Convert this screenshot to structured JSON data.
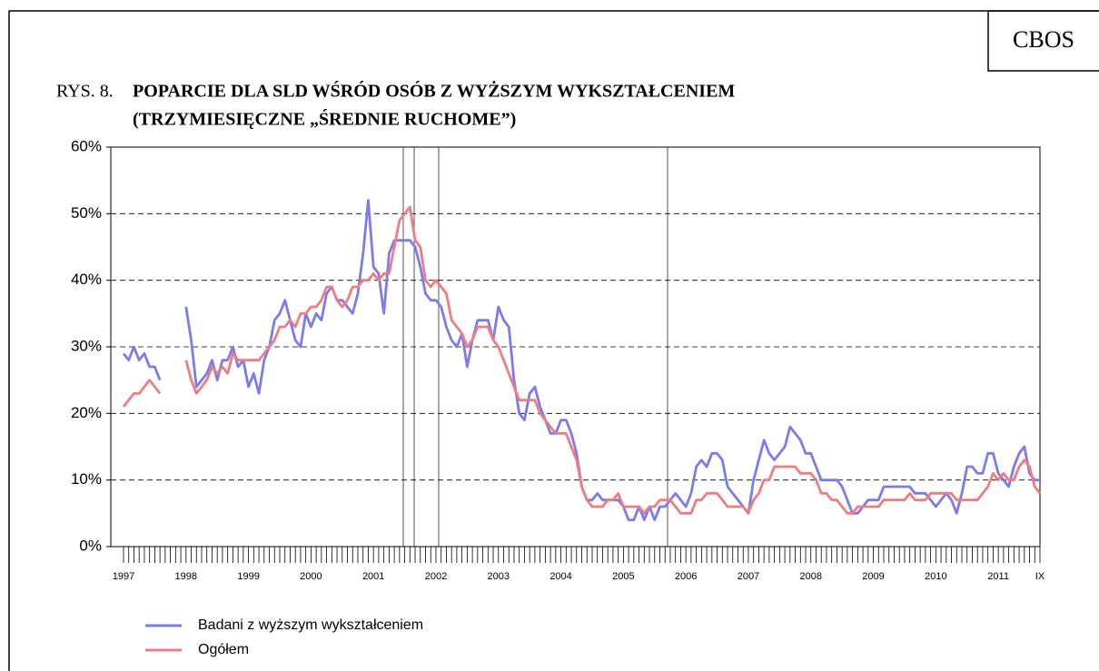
{
  "source": "CBOS",
  "chart_data": {
    "type": "line",
    "figure_label": "RYS. 8.",
    "title_lines": [
      "POPARCIE DLA SLD WŚRÓD OSÓB Z WYŻSZYM WYKSZTAŁCENIEM",
      "(TRZYMIESIĘCZNE „ŚREDNIE RUCHOME”)"
    ],
    "categories": [
      "1997",
      null,
      null,
      null,
      null,
      null,
      null,
      null,
      null,
      null,
      null,
      null,
      "1998",
      null,
      null,
      null,
      null,
      null,
      null,
      null,
      null,
      null,
      null,
      null,
      "1999",
      null,
      null,
      null,
      null,
      null,
      null,
      null,
      null,
      null,
      null,
      null,
      "2000",
      null,
      null,
      null,
      null,
      null,
      null,
      null,
      null,
      null,
      null,
      null,
      "2001",
      null,
      null,
      null,
      null,
      null,
      null,
      null,
      null,
      null,
      null,
      null,
      "2002",
      null,
      null,
      null,
      null,
      null,
      null,
      null,
      null,
      null,
      null,
      null,
      "2003",
      null,
      null,
      null,
      null,
      null,
      null,
      null,
      null,
      null,
      null,
      null,
      "2004",
      null,
      null,
      null,
      null,
      null,
      null,
      null,
      null,
      null,
      null,
      null,
      "2005",
      null,
      null,
      null,
      null,
      null,
      null,
      null,
      null,
      null,
      null,
      null,
      "2006",
      null,
      null,
      null,
      null,
      null,
      null,
      null,
      null,
      null,
      null,
      null,
      "2007",
      null,
      null,
      null,
      null,
      null,
      null,
      null,
      null,
      null,
      null,
      null,
      "2008",
      null,
      null,
      null,
      null,
      null,
      null,
      null,
      null,
      null,
      null,
      null,
      "2009",
      null,
      null,
      null,
      null,
      null,
      null,
      null,
      null,
      null,
      null,
      null,
      "2010",
      null,
      null,
      null,
      null,
      null,
      null,
      null,
      null,
      null,
      null,
      null,
      "2011",
      null,
      null,
      null,
      null,
      null,
      null,
      null,
      "IX"
    ],
    "series": [
      {
        "name": "Badani z wyższym wykształceniem",
        "color": "#7b7bef",
        "values": [
          29,
          28,
          30,
          28,
          29,
          27,
          27,
          25,
          null,
          null,
          null,
          null,
          36,
          31,
          24,
          25,
          26,
          28,
          25,
          28,
          28,
          30,
          27,
          28,
          24,
          26,
          23,
          28,
          30,
          34,
          35,
          37,
          34,
          31,
          30,
          35,
          33,
          35,
          34,
          38,
          39,
          37,
          37,
          36,
          35,
          38,
          44,
          52,
          42,
          41,
          35,
          44,
          46,
          46,
          46,
          46,
          45,
          42,
          38,
          37,
          37,
          36,
          33,
          31,
          30,
          32,
          27,
          31,
          34,
          34,
          34,
          31,
          36,
          34,
          33,
          25,
          20,
          19,
          23,
          24,
          21,
          19,
          17,
          17,
          19,
          19,
          17,
          14,
          9,
          7,
          7,
          8,
          7,
          7,
          7,
          7,
          6,
          4,
          4,
          6,
          4,
          6,
          4,
          6,
          6,
          7,
          8,
          7,
          6,
          8,
          12,
          13,
          12,
          14,
          14,
          13,
          9,
          8,
          7,
          6,
          5,
          10,
          13,
          16,
          14,
          13,
          14,
          15,
          18,
          17,
          16,
          14,
          14,
          12,
          10,
          10,
          10,
          10,
          9,
          7,
          5,
          5,
          6,
          7,
          7,
          7,
          9,
          9,
          9,
          9,
          9,
          9,
          8,
          8,
          8,
          7,
          6,
          7,
          8,
          7,
          5,
          8,
          12,
          12,
          11,
          11,
          14,
          14,
          11,
          10,
          9,
          12,
          14,
          15,
          11,
          10,
          10
        ]
      },
      {
        "name": "Ogółem",
        "color": "#f07c80",
        "values": [
          21,
          22,
          23,
          23,
          24,
          25,
          24,
          23,
          null,
          null,
          null,
          null,
          28,
          25,
          23,
          24,
          25,
          27,
          26,
          27,
          26,
          29,
          28,
          28,
          28,
          28,
          28,
          29,
          30,
          31,
          33,
          33,
          34,
          33,
          35,
          35,
          36,
          36,
          37,
          39,
          39,
          37,
          36,
          37,
          39,
          39,
          40,
          40,
          41,
          40,
          41,
          41,
          45,
          49,
          50,
          51,
          46,
          45,
          40,
          39,
          40,
          39,
          38,
          34,
          33,
          32,
          30,
          31,
          33,
          33,
          33,
          31,
          30,
          28,
          26,
          24,
          22,
          22,
          22,
          22,
          20,
          19,
          18,
          17,
          17,
          17,
          15,
          13,
          9,
          7,
          6,
          6,
          6,
          7,
          7,
          8,
          6,
          6,
          6,
          6,
          5,
          6,
          6,
          7,
          7,
          7,
          6,
          5,
          5,
          5,
          7,
          7,
          8,
          8,
          8,
          7,
          6,
          6,
          6,
          6,
          5,
          7,
          8,
          10,
          10,
          12,
          12,
          12,
          12,
          12,
          11,
          11,
          11,
          10,
          8,
          8,
          7,
          7,
          6,
          5,
          5,
          6,
          6,
          6,
          6,
          6,
          7,
          7,
          7,
          7,
          7,
          8,
          7,
          7,
          7,
          8,
          8,
          8,
          8,
          8,
          7,
          7,
          7,
          7,
          7,
          8,
          9,
          11,
          10,
          11,
          10,
          10,
          12,
          13,
          12,
          9,
          8
        ]
      }
    ],
    "ylim": [
      0,
      60
    ],
    "yticks": [
      {
        "value": 0,
        "label": "0%"
      },
      {
        "value": 10,
        "label": "10%"
      },
      {
        "value": 20,
        "label": "20%"
      },
      {
        "value": 30,
        "label": "30%"
      },
      {
        "value": 40,
        "label": "40%"
      },
      {
        "value": 50,
        "label": "50%"
      },
      {
        "value": 60,
        "label": "60%"
      }
    ],
    "grid": true
  }
}
